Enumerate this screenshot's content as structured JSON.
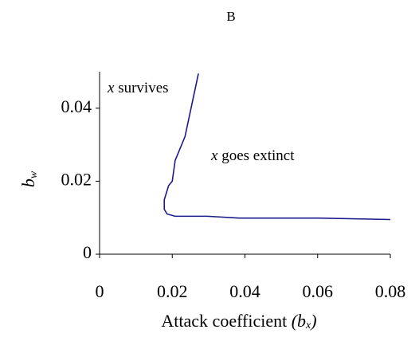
{
  "chart_data": {
    "type": "line",
    "title": "B",
    "xlabel": [
      "Attack coefficient",
      "(b",
      "x",
      ")"
    ],
    "ylabel": [
      "b",
      "w"
    ],
    "annotations": [
      [
        "x",
        "survives"
      ],
      [
        "x",
        "goes extinct"
      ]
    ],
    "x": [
      0.0272,
      0.0235,
      0.0208,
      0.02,
      0.019,
      0.0178,
      0.0178,
      0.0186,
      0.0208,
      0.0296,
      0.0384,
      0.0603,
      0.08
    ],
    "series": [
      {
        "color": "#1a1a8c",
        "values": [
          0.0495,
          0.0322,
          0.0257,
          0.02,
          0.0188,
          0.0149,
          0.0123,
          0.011,
          0.0104,
          0.0104,
          0.0099,
          0.0099,
          0.0095
        ]
      }
    ],
    "xlim": [
      0,
      0.08
    ],
    "xticks": [
      0,
      0.02,
      0.04,
      0.06,
      0.08
    ],
    "ylim": [
      0,
      0.05
    ],
    "yticks": [
      0,
      0.02,
      0.04
    ]
  }
}
